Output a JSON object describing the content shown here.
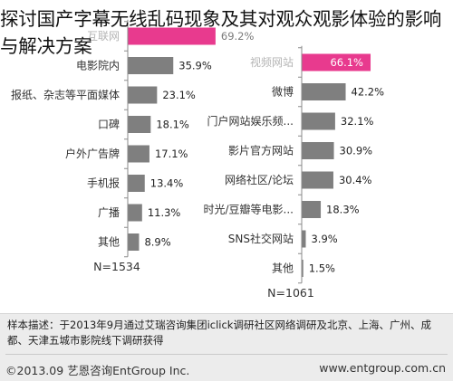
{
  "overlay_title": "探讨国产字幕无线乱码现象及其对观众观影体验的影响与解决方案",
  "chart_data": [
    {
      "type": "bar",
      "orientation": "horizontal",
      "categories": [
        "互联网",
        "电影院内",
        "报纸、杂志等平面媒体",
        "口碑",
        "户外广告牌",
        "手机报",
        "广播",
        "其他"
      ],
      "values": [
        69.2,
        35.9,
        23.1,
        18.1,
        17.1,
        13.4,
        11.3,
        8.9
      ],
      "value_labels": [
        "69.2%",
        "35.9%",
        "23.1%",
        "18.1%",
        "17.1%",
        "13.4%",
        "11.3%",
        "8.9%"
      ],
      "sample": "N=1534",
      "bar_color": "#7f7f7f",
      "highlight_color": "#e83a8e"
    },
    {
      "type": "bar",
      "orientation": "horizontal",
      "categories": [
        "视频网站",
        "微博",
        "门户网站娱乐频...",
        "影片官方网站",
        "网络社区/论坛",
        "时光/豆瓣等电影...",
        "SNS社交网站",
        "其他"
      ],
      "values": [
        66.1,
        42.2,
        32.1,
        30.9,
        30.4,
        18.3,
        3.9,
        1.5
      ],
      "value_labels": [
        "66.1%",
        "42.2%",
        "32.1%",
        "30.9%",
        "30.4%",
        "18.3%",
        "3.9%",
        "1.5%"
      ],
      "sample": "N=1061",
      "bar_color": "#7f7f7f",
      "highlight_color": "#e83a8e"
    }
  ],
  "footnote": "样本描述：于2013年9月通过艾瑞咨询集团iclick调研社区网络调研及北京、上海、广州、成都、天津五城市影院线下调研获得",
  "copyright_left": "©2013.09  艺恩咨询EntGroup Inc.",
  "copyright_right": "www.entgroup.com.cn"
}
